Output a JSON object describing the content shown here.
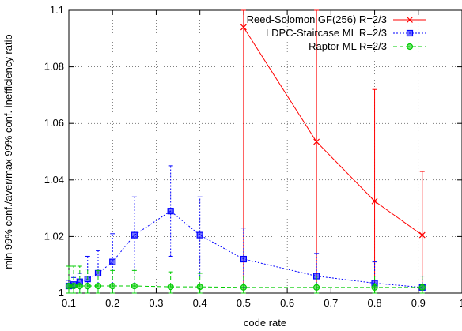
{
  "chart_data": {
    "type": "line",
    "title": "",
    "xlabel": "code rate",
    "ylabel": "min 99% conf./aver/max 99% conf. inefficiency ratio",
    "xlim": [
      0.1,
      1.0
    ],
    "ylim": [
      1.0,
      1.1
    ],
    "xticks": [
      "0.1",
      "0.2",
      "0.3",
      "0.4",
      "0.5",
      "0.6",
      "0.7",
      "0.8",
      "0.9",
      "1"
    ],
    "yticks": [
      "1",
      "1.02",
      "1.04",
      "1.06",
      "1.08",
      "1.1"
    ],
    "grid": true,
    "legend_position": "top-right",
    "series": [
      {
        "name": "Reed-Solomon GF(256) R=2/3",
        "color": "#ff0000",
        "marker": "x",
        "dash": "solid",
        "points": [
          {
            "x": 0.5,
            "y": 1.094,
            "lo": 1.0,
            "hi": 1.1
          },
          {
            "x": 0.667,
            "y": 1.0535,
            "lo": 1.0,
            "hi": 1.1
          },
          {
            "x": 0.8,
            "y": 1.0325,
            "lo": 1.0,
            "hi": 1.072
          },
          {
            "x": 0.909,
            "y": 1.0205,
            "lo": 1.0,
            "hi": 1.043
          }
        ]
      },
      {
        "name": "LDPC-Staircase ML R=2/3",
        "color": "#0000ff",
        "marker": "square",
        "dash": "dotted",
        "points": [
          {
            "x": 0.1,
            "y": 1.0025,
            "lo": 1.0,
            "hi": 1.0045
          },
          {
            "x": 0.111,
            "y": 1.003,
            "lo": 1.0,
            "hi": 1.0055
          },
          {
            "x": 0.125,
            "y": 1.004,
            "lo": 1.0,
            "hi": 1.007
          },
          {
            "x": 0.143,
            "y": 1.005,
            "lo": 1.0,
            "hi": 1.013
          },
          {
            "x": 0.167,
            "y": 1.007,
            "lo": 1.0,
            "hi": 1.015
          },
          {
            "x": 0.2,
            "y": 1.011,
            "lo": 1.0,
            "hi": 1.021
          },
          {
            "x": 0.25,
            "y": 1.0205,
            "lo": 1.0,
            "hi": 1.034
          },
          {
            "x": 0.333,
            "y": 1.029,
            "lo": 1.013,
            "hi": 1.045
          },
          {
            "x": 0.4,
            "y": 1.0205,
            "lo": 1.006,
            "hi": 1.034
          },
          {
            "x": 0.5,
            "y": 1.012,
            "lo": 1.002,
            "hi": 1.023
          },
          {
            "x": 0.667,
            "y": 1.006,
            "lo": 1.0,
            "hi": 1.014
          },
          {
            "x": 0.8,
            "y": 1.0035,
            "lo": 1.0,
            "hi": 1.011
          },
          {
            "x": 0.909,
            "y": 1.002,
            "lo": 1.0,
            "hi": 1.006
          }
        ]
      },
      {
        "name": "Raptor ML R=2/3",
        "color": "#00cc00",
        "marker": "circle",
        "dash": "dashed",
        "points": [
          {
            "x": 0.1,
            "y": 1.0025,
            "lo": 1.0,
            "hi": 1.0095
          },
          {
            "x": 0.111,
            "y": 1.0025,
            "lo": 1.0,
            "hi": 1.0095
          },
          {
            "x": 0.125,
            "y": 1.0025,
            "lo": 1.0,
            "hi": 1.0095
          },
          {
            "x": 0.143,
            "y": 1.0025,
            "lo": 1.0,
            "hi": 1.0085
          },
          {
            "x": 0.167,
            "y": 1.0025,
            "lo": 1.0,
            "hi": 1.008
          },
          {
            "x": 0.2,
            "y": 1.0025,
            "lo": 1.0,
            "hi": 1.008
          },
          {
            "x": 0.25,
            "y": 1.0025,
            "lo": 1.0,
            "hi": 1.008
          },
          {
            "x": 0.333,
            "y": 1.0022,
            "lo": 1.0,
            "hi": 1.0075
          },
          {
            "x": 0.4,
            "y": 1.0022,
            "lo": 1.0,
            "hi": 1.007
          },
          {
            "x": 0.5,
            "y": 1.002,
            "lo": 1.0,
            "hi": 1.006
          },
          {
            "x": 0.667,
            "y": 1.002,
            "lo": 1.0,
            "hi": 1.006
          },
          {
            "x": 0.8,
            "y": 1.002,
            "lo": 1.0,
            "hi": 1.006
          },
          {
            "x": 0.909,
            "y": 1.002,
            "lo": 1.0,
            "hi": 1.006
          }
        ]
      }
    ]
  }
}
